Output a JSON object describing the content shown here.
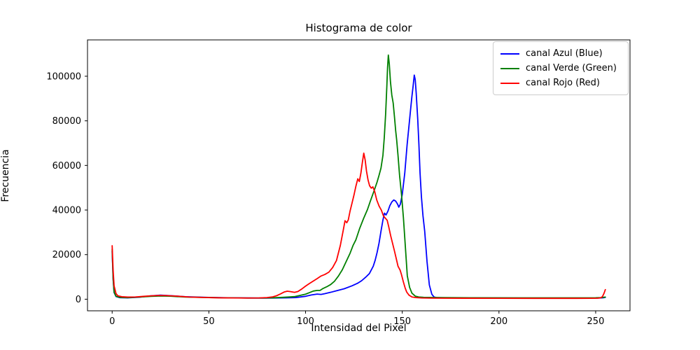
{
  "chart_data": {
    "type": "line",
    "title": "Histograma de color",
    "xlabel": "Intensidad del Pixel",
    "ylabel": "Frecuencia",
    "xlim": [
      -12.75,
      267.75
    ],
    "ylim": [
      -5200,
      116300
    ],
    "xticks": [
      0,
      50,
      100,
      150,
      200,
      250
    ],
    "yticks": [
      0,
      20000,
      40000,
      60000,
      80000,
      100000
    ],
    "grid": false,
    "legend_position": "upper right",
    "background_color": "#ffffff",
    "spine_color": "#000000",
    "line_width": 1.8,
    "series": [
      {
        "name": "canal Azul (Blue)",
        "color": "#0000ff",
        "points": [
          [
            0,
            21500
          ],
          [
            0.5,
            9000
          ],
          [
            1,
            3000
          ],
          [
            2,
            1200
          ],
          [
            4,
            700
          ],
          [
            8,
            600
          ],
          [
            14,
            900
          ],
          [
            20,
            1500
          ],
          [
            25,
            1800
          ],
          [
            30,
            1600
          ],
          [
            38,
            1100
          ],
          [
            50,
            800
          ],
          [
            60,
            650
          ],
          [
            70,
            550
          ],
          [
            80,
            500
          ],
          [
            90,
            600
          ],
          [
            95,
            750
          ],
          [
            100,
            1300
          ],
          [
            103,
            1900
          ],
          [
            106,
            2300
          ],
          [
            108,
            2150
          ],
          [
            110,
            2500
          ],
          [
            113,
            3100
          ],
          [
            116,
            3800
          ],
          [
            120,
            4700
          ],
          [
            124,
            6000
          ],
          [
            127,
            7200
          ],
          [
            129,
            8300
          ],
          [
            131,
            9800
          ],
          [
            133,
            11500
          ],
          [
            135,
            14800
          ],
          [
            136,
            17500
          ],
          [
            137,
            21000
          ],
          [
            138,
            25200
          ],
          [
            139,
            30500
          ],
          [
            140,
            35500
          ],
          [
            140.8,
            38600
          ],
          [
            141.6,
            37800
          ],
          [
            142.6,
            39500
          ],
          [
            143.6,
            42000
          ],
          [
            144.6,
            43600
          ],
          [
            145.6,
            44500
          ],
          [
            146.6,
            44000
          ],
          [
            147.6,
            42600
          ],
          [
            148.2,
            41300
          ],
          [
            149,
            42600
          ],
          [
            150,
            47000
          ],
          [
            151.3,
            56600
          ],
          [
            152.5,
            69200
          ],
          [
            153.5,
            78000
          ],
          [
            154.4,
            85900
          ],
          [
            155,
            91000
          ],
          [
            155.6,
            95500
          ],
          [
            156.2,
            100500
          ],
          [
            156.7,
            98500
          ],
          [
            157.2,
            92500
          ],
          [
            158,
            80700
          ],
          [
            158.6,
            69500
          ],
          [
            159.2,
            56600
          ],
          [
            159.9,
            46000
          ],
          [
            160.7,
            37500
          ],
          [
            161.6,
            30500
          ],
          [
            162.8,
            16900
          ],
          [
            164,
            6400
          ],
          [
            165.3,
            2200
          ],
          [
            166.5,
            950
          ],
          [
            168,
            700
          ],
          [
            172,
            620
          ],
          [
            180,
            560
          ],
          [
            200,
            510
          ],
          [
            225,
            490
          ],
          [
            245,
            490
          ],
          [
            252,
            520
          ],
          [
            254,
            640
          ],
          [
            255,
            850
          ]
        ]
      },
      {
        "name": "canal Verde (Green)",
        "color": "#008000",
        "points": [
          [
            0,
            22500
          ],
          [
            0.5,
            9500
          ],
          [
            1,
            3200
          ],
          [
            2,
            1300
          ],
          [
            4,
            800
          ],
          [
            8,
            680
          ],
          [
            14,
            950
          ],
          [
            20,
            1300
          ],
          [
            25,
            1450
          ],
          [
            30,
            1350
          ],
          [
            38,
            950
          ],
          [
            50,
            750
          ],
          [
            60,
            600
          ],
          [
            70,
            520
          ],
          [
            78,
            520
          ],
          [
            83,
            620
          ],
          [
            88,
            820
          ],
          [
            92,
            1020
          ],
          [
            94.5,
            1180
          ],
          [
            97,
            1650
          ],
          [
            100,
            2250
          ],
          [
            102,
            2950
          ],
          [
            104,
            3650
          ],
          [
            106,
            3950
          ],
          [
            107.5,
            3950
          ],
          [
            109,
            4800
          ],
          [
            111,
            5600
          ],
          [
            113,
            6600
          ],
          [
            115,
            8100
          ],
          [
            117,
            10400
          ],
          [
            119,
            13200
          ],
          [
            121,
            16900
          ],
          [
            123,
            20600
          ],
          [
            124.6,
            24200
          ],
          [
            126,
            26600
          ],
          [
            128,
            31800
          ],
          [
            130,
            36200
          ],
          [
            132,
            40200
          ],
          [
            133.5,
            44000
          ],
          [
            135.5,
            48800
          ],
          [
            137,
            52600
          ],
          [
            138,
            55600
          ],
          [
            139,
            58800
          ],
          [
            140,
            64500
          ],
          [
            140.7,
            72500
          ],
          [
            141.4,
            83000
          ],
          [
            142,
            95000
          ],
          [
            142.4,
            104000
          ],
          [
            142.8,
            109500
          ],
          [
            143.3,
            105500
          ],
          [
            143.9,
            97500
          ],
          [
            144.6,
            91500
          ],
          [
            145.3,
            88000
          ],
          [
            146,
            81500
          ],
          [
            146.6,
            75500
          ],
          [
            147.1,
            71500
          ],
          [
            147.8,
            64500
          ],
          [
            148.6,
            55600
          ],
          [
            149.6,
            47000
          ],
          [
            150.6,
            36500
          ],
          [
            151.6,
            23500
          ],
          [
            152.6,
            10500
          ],
          [
            153.8,
            5300
          ],
          [
            155,
            2700
          ],
          [
            156.8,
            1350
          ],
          [
            158.5,
            1000
          ],
          [
            161,
            820
          ],
          [
            170,
            710
          ],
          [
            185,
            650
          ],
          [
            210,
            610
          ],
          [
            235,
            610
          ],
          [
            250,
            640
          ],
          [
            253,
            720
          ],
          [
            255,
            950
          ]
        ]
      },
      {
        "name": "canal Rojo (Red)",
        "color": "#ff0000",
        "points": [
          [
            0,
            24000
          ],
          [
            0.5,
            13000
          ],
          [
            1,
            6000
          ],
          [
            2,
            2500
          ],
          [
            3,
            1500
          ],
          [
            5,
            1100
          ],
          [
            8,
            950
          ],
          [
            12,
            1000
          ],
          [
            16,
            1250
          ],
          [
            20,
            1500
          ],
          [
            24,
            1680
          ],
          [
            28,
            1620
          ],
          [
            33,
            1400
          ],
          [
            40,
            950
          ],
          [
            48,
            760
          ],
          [
            55,
            630
          ],
          [
            62,
            560
          ],
          [
            70,
            530
          ],
          [
            76,
            570
          ],
          [
            80,
            720
          ],
          [
            83,
            1050
          ],
          [
            85,
            1550
          ],
          [
            87,
            2350
          ],
          [
            89,
            3250
          ],
          [
            90.5,
            3580
          ],
          [
            92,
            3420
          ],
          [
            94.3,
            3080
          ],
          [
            96,
            3450
          ],
          [
            98,
            4550
          ],
          [
            100,
            5870
          ],
          [
            102,
            7050
          ],
          [
            104,
            8150
          ],
          [
            106,
            9250
          ],
          [
            108,
            10400
          ],
          [
            110,
            11100
          ],
          [
            112,
            12100
          ],
          [
            114,
            14200
          ],
          [
            116,
            17400
          ],
          [
            118,
            24200
          ],
          [
            119.5,
            31000
          ],
          [
            120.4,
            35200
          ],
          [
            121.3,
            34300
          ],
          [
            122.1,
            35600
          ],
          [
            123,
            39500
          ],
          [
            124,
            43000
          ],
          [
            125,
            46600
          ],
          [
            126,
            50600
          ],
          [
            127,
            54000
          ],
          [
            127.8,
            52800
          ],
          [
            128.6,
            56500
          ],
          [
            129.4,
            61500
          ],
          [
            130.1,
            65500
          ],
          [
            130.8,
            62500
          ],
          [
            131.5,
            57500
          ],
          [
            132.3,
            53500
          ],
          [
            133.1,
            50900
          ],
          [
            134,
            49800
          ],
          [
            134.8,
            50400
          ],
          [
            135.7,
            48400
          ],
          [
            136.8,
            44500
          ],
          [
            138,
            41800
          ],
          [
            139.2,
            39900
          ],
          [
            140.3,
            37300
          ],
          [
            141.3,
            36300
          ],
          [
            142.2,
            35400
          ],
          [
            143,
            32500
          ],
          [
            144,
            28500
          ],
          [
            145,
            25000
          ],
          [
            146,
            21500
          ],
          [
            147,
            17800
          ],
          [
            147.8,
            14800
          ],
          [
            148.9,
            13000
          ],
          [
            149.6,
            11000
          ],
          [
            150.5,
            8000
          ],
          [
            151.5,
            5000
          ],
          [
            152.3,
            3200
          ],
          [
            153.5,
            1800
          ],
          [
            155,
            1000
          ],
          [
            157,
            720
          ],
          [
            160,
            570
          ],
          [
            165,
            490
          ],
          [
            172,
            450
          ],
          [
            182,
            430
          ],
          [
            200,
            410
          ],
          [
            220,
            395
          ],
          [
            240,
            395
          ],
          [
            248,
            410
          ],
          [
            251,
            460
          ],
          [
            252.5,
            620
          ],
          [
            253.5,
            1150
          ],
          [
            254.3,
            2600
          ],
          [
            255,
            4300
          ]
        ]
      }
    ]
  }
}
